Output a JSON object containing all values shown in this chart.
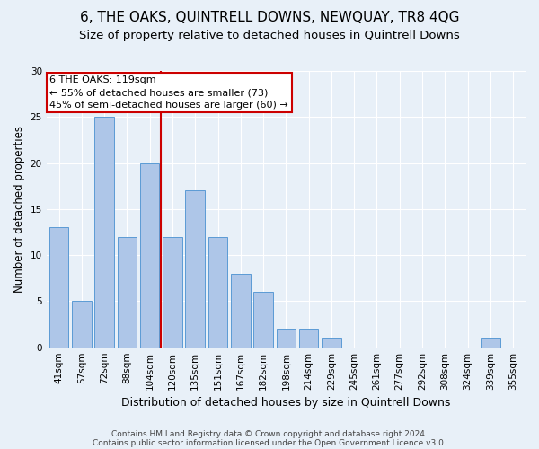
{
  "title1": "6, THE OAKS, QUINTRELL DOWNS, NEWQUAY, TR8 4QG",
  "title2": "Size of property relative to detached houses in Quintrell Downs",
  "xlabel": "Distribution of detached houses by size in Quintrell Downs",
  "ylabel": "Number of detached properties",
  "categories": [
    "41sqm",
    "57sqm",
    "72sqm",
    "88sqm",
    "104sqm",
    "120sqm",
    "135sqm",
    "151sqm",
    "167sqm",
    "182sqm",
    "198sqm",
    "214sqm",
    "229sqm",
    "245sqm",
    "261sqm",
    "277sqm",
    "292sqm",
    "308sqm",
    "324sqm",
    "339sqm",
    "355sqm"
  ],
  "values": [
    13,
    5,
    25,
    12,
    20,
    12,
    17,
    12,
    8,
    6,
    2,
    2,
    1,
    0,
    0,
    0,
    0,
    0,
    0,
    1,
    0
  ],
  "bar_color": "#aec6e8",
  "bar_edge_color": "#5b9bd5",
  "vline_x": 4.5,
  "vline_color": "#cc0000",
  "annotation_text": "6 THE OAKS: 119sqm\n← 55% of detached houses are smaller (73)\n45% of semi-detached houses are larger (60) →",
  "annotation_box_color": "#ffffff",
  "annotation_box_edge_color": "#cc0000",
  "ylim": [
    0,
    30
  ],
  "yticks": [
    0,
    5,
    10,
    15,
    20,
    25,
    30
  ],
  "background_color": "#e8f0f8",
  "footer_line1": "Contains HM Land Registry data © Crown copyright and database right 2024.",
  "footer_line2": "Contains public sector information licensed under the Open Government Licence v3.0.",
  "title1_fontsize": 11,
  "title2_fontsize": 9.5,
  "xlabel_fontsize": 9,
  "ylabel_fontsize": 8.5,
  "tick_fontsize": 7.5,
  "annotation_fontsize": 8,
  "footer_fontsize": 6.5
}
